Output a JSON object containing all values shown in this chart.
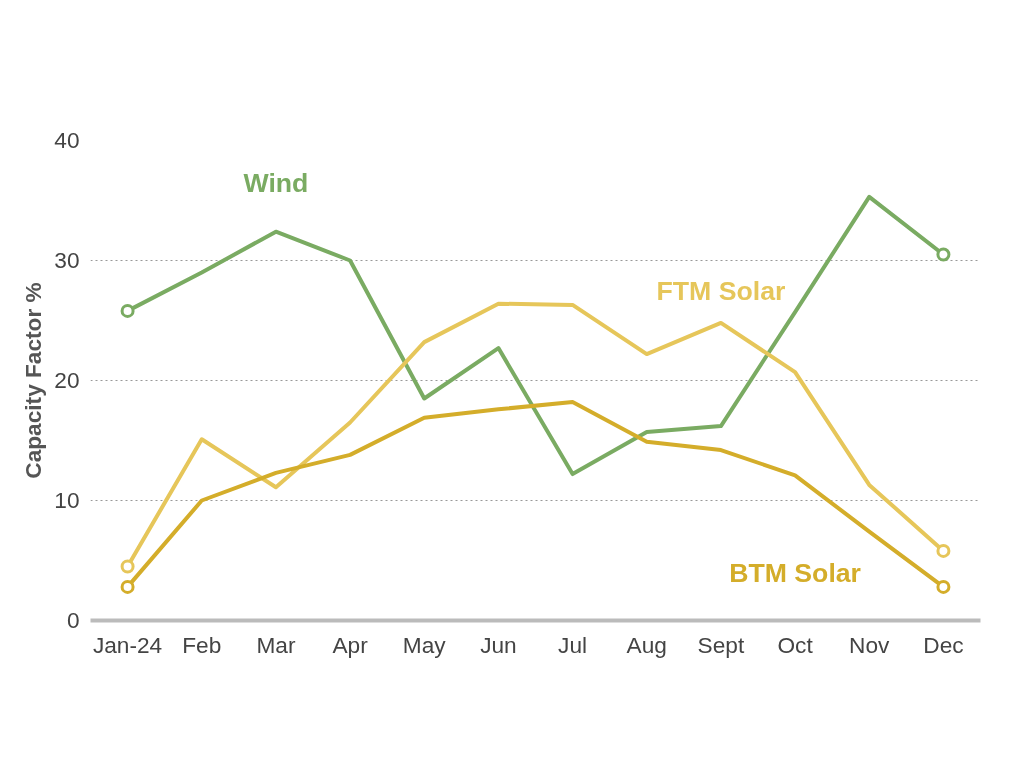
{
  "chart_data": {
    "type": "line",
    "ylabel": "Capacity Factor %",
    "categories": [
      "Jan-24",
      "Feb",
      "Mar",
      "Apr",
      "May",
      "Jun",
      "Jul",
      "Aug",
      "Sept",
      "Oct",
      "Nov",
      "Dec"
    ],
    "series": [
      {
        "name": "Wind",
        "color": "#7aab62",
        "values": [
          25.8,
          29.0,
          32.4,
          30.0,
          18.5,
          22.7,
          12.2,
          15.7,
          16.2,
          25.7,
          35.3,
          30.5
        ]
      },
      {
        "name": "FTM Solar",
        "color": "#e6c65a",
        "values": [
          4.5,
          15.1,
          11.1,
          16.5,
          23.2,
          26.4,
          26.3,
          22.2,
          24.8,
          20.7,
          11.3,
          5.8
        ]
      },
      {
        "name": "BTM Solar",
        "color": "#d4ad2a",
        "values": [
          2.8,
          10.0,
          12.3,
          13.8,
          16.9,
          17.6,
          18.2,
          14.9,
          14.2,
          12.1,
          7.4,
          2.8
        ]
      }
    ],
    "ylim": [
      0,
      40
    ],
    "yticks": [
      0,
      10,
      20,
      30,
      40
    ],
    "grid": "y",
    "line_style": "solid"
  }
}
